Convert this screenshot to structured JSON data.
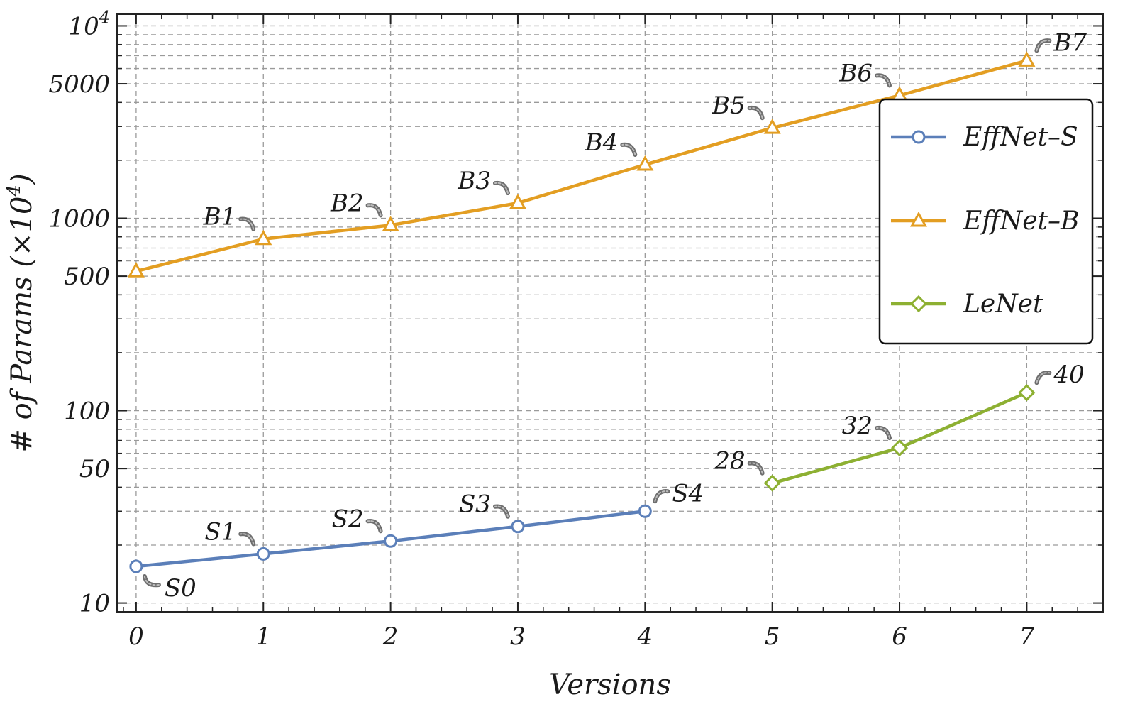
{
  "chart_data": {
    "type": "line",
    "title": "",
    "xlabel": "Versions",
    "ylabel": "# of Params (×10",
    "ylabel_sup": "4",
    "ylabel_close": ")",
    "yscale": "log",
    "xlim": [
      -0.15,
      7.6
    ],
    "ylim": [
      9,
      11500
    ],
    "grid": true,
    "legend_position": "right",
    "x_ticks": [
      "0",
      "1",
      "2",
      "3",
      "4",
      "5",
      "6",
      "7"
    ],
    "y_ticks": [
      {
        "value": 10,
        "label": "10"
      },
      {
        "value": 50,
        "label": "50"
      },
      {
        "value": 100,
        "label": "100"
      },
      {
        "value": 500,
        "label": "500"
      },
      {
        "value": 1000,
        "label": "1000"
      },
      {
        "value": 5000,
        "label": "5000"
      },
      {
        "value": 10000,
        "label": "10",
        "sup": "4"
      }
    ],
    "series": [
      {
        "name": "EffNet–S",
        "color": "#5b7fb9",
        "marker": "circle",
        "x": [
          0,
          1,
          2,
          3,
          4
        ],
        "y": [
          15.5,
          18,
          21,
          25,
          30
        ],
        "labels": [
          "S0",
          "S1",
          "S2",
          "S3",
          "S4"
        ],
        "label_side": [
          "below-right",
          "above-left",
          "above-left",
          "above-left",
          "above-right"
        ]
      },
      {
        "name": "EffNet–B",
        "color": "#e39e22",
        "marker": "triangle",
        "x": [
          0,
          1,
          2,
          3,
          4,
          5,
          6,
          7
        ],
        "y": [
          530,
          780,
          920,
          1200,
          1900,
          2950,
          4350,
          6600
        ],
        "labels": [
          "",
          "B1",
          "B2",
          "B3",
          "B4",
          "B5",
          "B6",
          "B7"
        ],
        "label_side": [
          "none",
          "above-left",
          "above-left",
          "above-left",
          "above-left",
          "above-left",
          "above-left",
          "above-right"
        ]
      },
      {
        "name": "LeNet",
        "color": "#8db032",
        "marker": "diamond",
        "x": [
          5,
          6,
          7
        ],
        "y": [
          42,
          64,
          124
        ],
        "labels": [
          "28",
          "32",
          "40"
        ],
        "label_side": [
          "above-left",
          "above-left",
          "above-right"
        ]
      }
    ]
  }
}
